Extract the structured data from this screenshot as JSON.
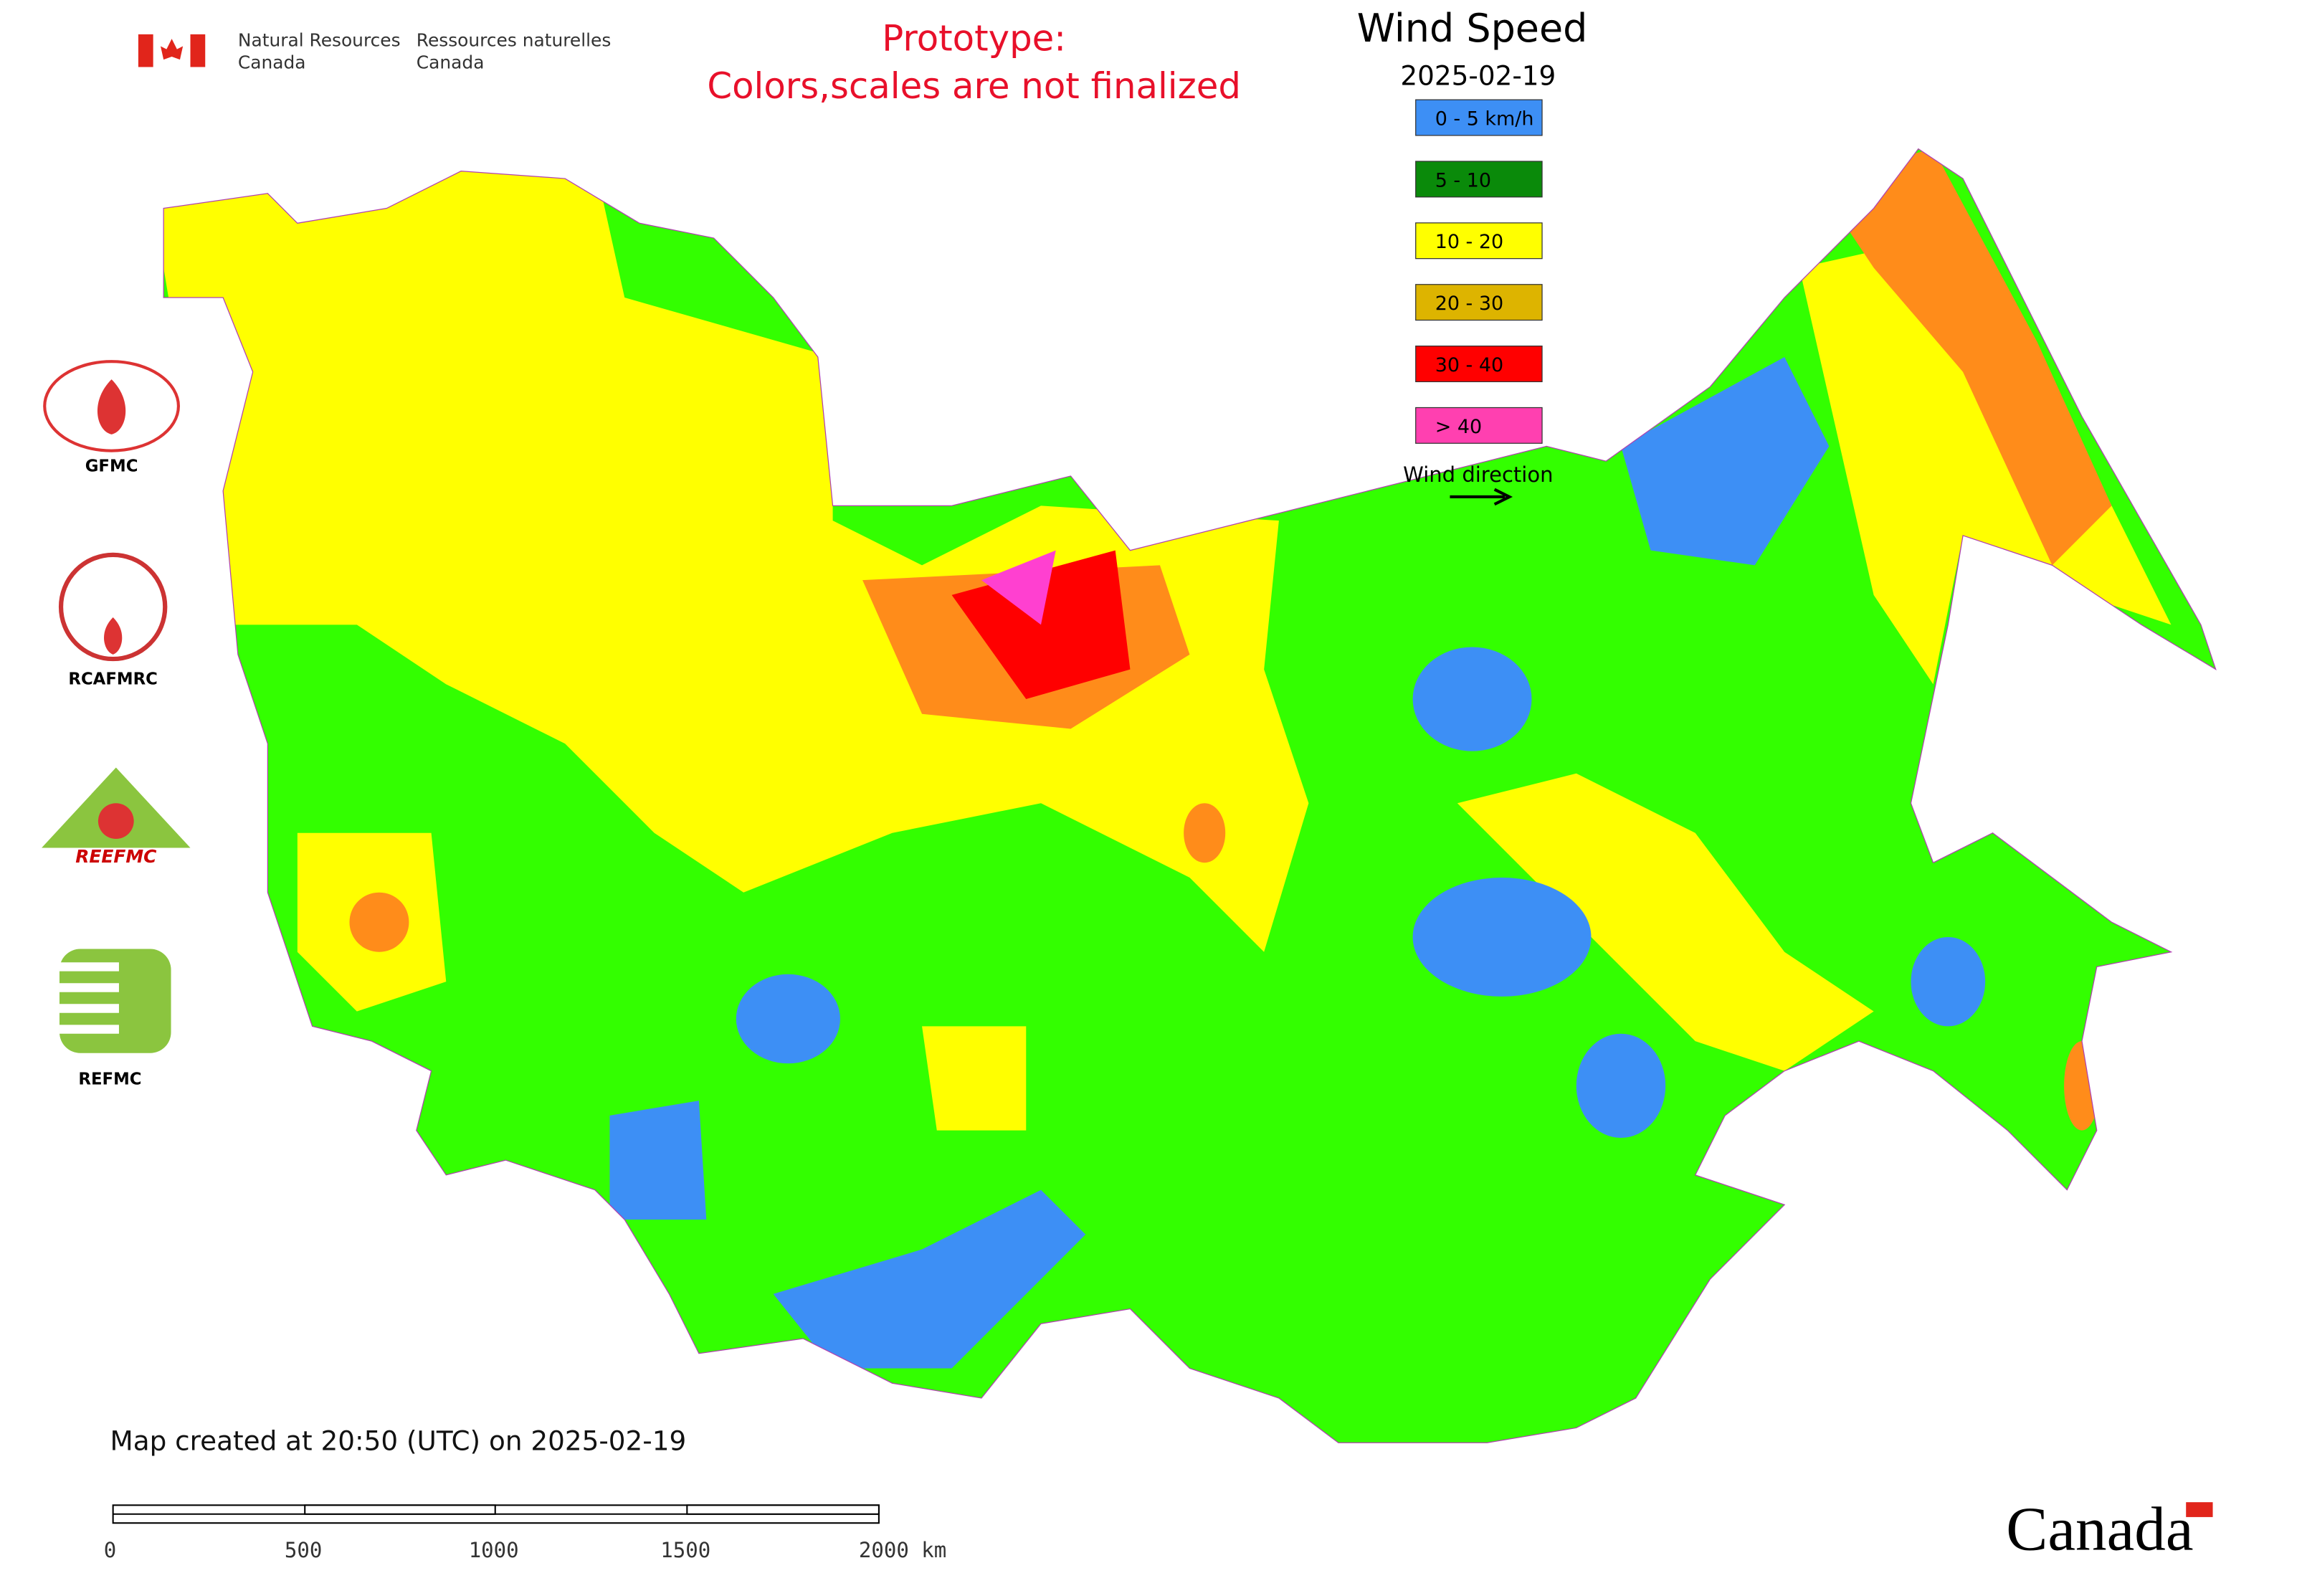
{
  "header": {
    "department_en": [
      "Natural Resources",
      "Canada"
    ],
    "department_fr": [
      "Ressources naturelles",
      "Canada"
    ]
  },
  "notice": [
    "Prototype:",
    "Colors,scales are not finalized"
  ],
  "legend": {
    "title": "Wind Speed",
    "date": "2025-02-19",
    "items": [
      {
        "label": "0 - 5 km/h",
        "color": "#3d8ff5"
      },
      {
        "label": "5 - 10",
        "color": "#0a8a0a"
      },
      {
        "label": "10 - 20",
        "color": "#ffff00"
      },
      {
        "label": "20 - 30",
        "color": "#ddb400"
      },
      {
        "label": "30 - 40",
        "color": "#ff0000"
      },
      {
        "label": "> 40",
        "color": "#ff40b0"
      }
    ],
    "direction_label": "Wind direction"
  },
  "logos": [
    "GFMC",
    "RCAFMRC",
    "REEFMC",
    "REFMC"
  ],
  "map_note": "Map created at 20:50 (UTC) on 2025-02-19",
  "scale_bar": {
    "labels": [
      "0",
      "500",
      "1000",
      "1500",
      "2000 km"
    ]
  },
  "wordmark": "Canada"
}
